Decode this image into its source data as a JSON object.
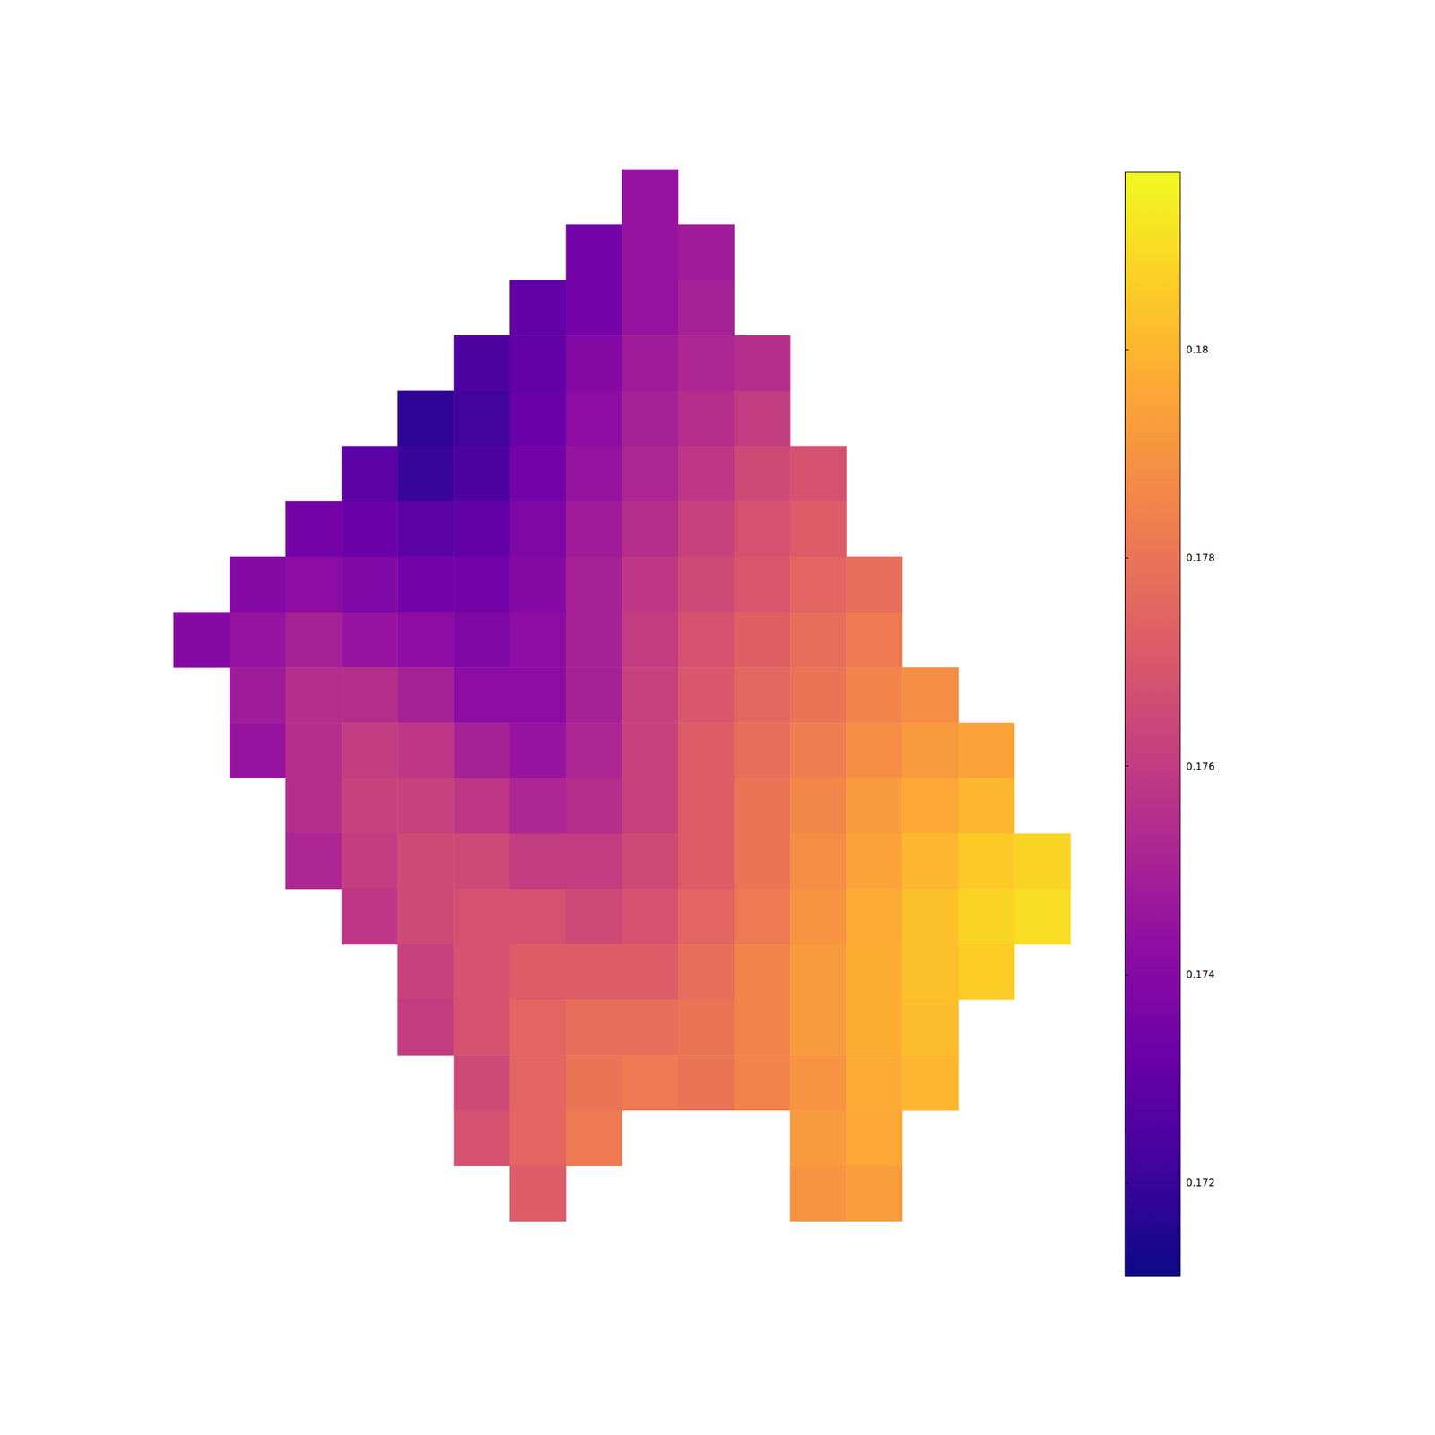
{
  "chart_data": {
    "type": "heatmap",
    "tick_labels": false,
    "cells": [
      [
        null,
        null,
        null,
        null,
        null,
        null,
        null,
        null,
        0.1745,
        null,
        null,
        null,
        null,
        null,
        null,
        null
      ],
      [
        null,
        null,
        null,
        null,
        null,
        null,
        null,
        0.1735,
        0.1745,
        0.1748,
        null,
        null,
        null,
        null,
        null,
        null
      ],
      [
        null,
        null,
        null,
        null,
        null,
        null,
        0.173,
        0.1735,
        0.1745,
        0.175,
        null,
        null,
        null,
        null,
        null,
        null
      ],
      [
        null,
        null,
        null,
        null,
        null,
        0.1725,
        0.173,
        0.174,
        0.1748,
        0.1752,
        0.1755,
        null,
        null,
        null,
        null,
        null
      ],
      [
        null,
        null,
        null,
        null,
        0.1718,
        0.1722,
        0.1732,
        0.1742,
        0.175,
        0.1755,
        0.176,
        null,
        null,
        null,
        null,
        null
      ],
      [
        null,
        null,
        null,
        0.1728,
        0.172,
        0.1725,
        0.1735,
        0.1745,
        0.1752,
        0.1758,
        0.1765,
        0.1768,
        null,
        null,
        null,
        null
      ],
      [
        null,
        null,
        0.1735,
        0.1732,
        0.1728,
        0.173,
        0.1738,
        0.1748,
        0.1755,
        0.1762,
        0.1768,
        0.1772,
        null,
        null,
        null,
        null
      ],
      [
        null,
        0.174,
        0.1742,
        0.1738,
        0.1735,
        0.1735,
        0.174,
        0.175,
        0.1758,
        0.1765,
        0.177,
        0.1775,
        0.1778,
        null,
        null,
        null
      ],
      [
        0.174,
        0.1745,
        0.175,
        0.1745,
        0.1742,
        0.1738,
        0.1742,
        0.175,
        0.176,
        0.1768,
        0.1773,
        0.1778,
        0.1782,
        null,
        null,
        null
      ],
      [
        null,
        0.1748,
        0.1755,
        0.1755,
        0.175,
        0.1742,
        0.1742,
        0.175,
        0.1762,
        0.177,
        0.1776,
        0.178,
        0.1785,
        0.1788,
        null,
        null
      ],
      [
        null,
        0.1745,
        0.1755,
        0.176,
        0.1758,
        0.175,
        0.1745,
        0.1752,
        0.1762,
        0.1772,
        0.1778,
        0.1783,
        0.1788,
        0.1792,
        0.1795,
        null
      ],
      [
        null,
        null,
        0.1755,
        0.1762,
        0.1762,
        0.1758,
        0.1752,
        0.1755,
        0.1762,
        0.1772,
        0.178,
        0.1786,
        0.1792,
        0.1796,
        0.18,
        null
      ],
      [
        null,
        null,
        0.1752,
        0.176,
        0.1765,
        0.1765,
        0.176,
        0.176,
        0.1765,
        0.1772,
        0.178,
        0.1788,
        0.1795,
        0.18,
        0.1805,
        0.1808
      ],
      [
        null,
        null,
        null,
        0.1758,
        0.1765,
        0.1768,
        0.1768,
        0.1765,
        0.1768,
        0.1775,
        0.1782,
        0.179,
        0.1797,
        0.1803,
        0.1808,
        0.181
      ],
      [
        null,
        null,
        null,
        null,
        0.1762,
        0.1768,
        0.1772,
        0.1772,
        0.1772,
        0.1778,
        0.1785,
        0.1792,
        0.1798,
        0.1803,
        0.1806,
        null
      ],
      [
        null,
        null,
        null,
        null,
        0.176,
        0.1768,
        0.1775,
        0.1778,
        0.1778,
        0.178,
        0.1785,
        0.1792,
        0.1798,
        0.1802,
        null,
        null
      ],
      [
        null,
        null,
        null,
        null,
        null,
        0.1765,
        0.1775,
        0.178,
        0.1782,
        0.178,
        0.1785,
        0.179,
        0.1797,
        0.18,
        null,
        null
      ],
      [
        null,
        null,
        null,
        null,
        null,
        0.1768,
        0.1775,
        0.1782,
        null,
        null,
        null,
        0.1792,
        0.1796,
        null,
        null,
        null
      ],
      [
        null,
        null,
        null,
        null,
        null,
        null,
        0.1772,
        null,
        null,
        null,
        null,
        0.179,
        0.1793,
        null,
        null,
        null
      ]
    ],
    "colorbar_range": [
      0.1711,
      0.1817
    ],
    "colorbar_ticks": [
      0.172,
      0.174,
      0.176,
      0.178,
      0.18
    ]
  }
}
